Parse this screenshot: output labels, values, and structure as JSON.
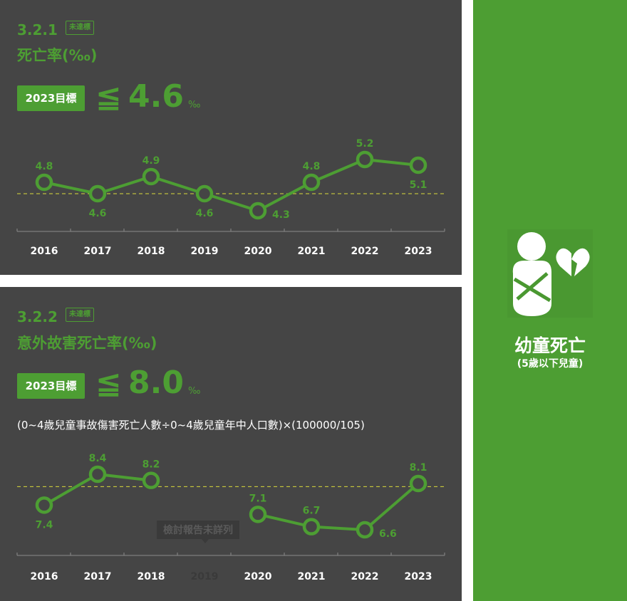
{
  "colors": {
    "accent": "#4d9e33",
    "panel": "#454545",
    "threshold_line": "#d9d93a",
    "point_fill": "#454545"
  },
  "charts": [
    {
      "code": "3.2.1",
      "status_badge": "未達標",
      "metric_title": "死亡率(‰)",
      "target_label": "2023目標",
      "target_operator": "≦",
      "target_value": "4.6",
      "target_unit": "‰",
      "chart_data": {
        "type": "line",
        "categories": [
          "2016",
          "2017",
          "2018",
          "2019",
          "2020",
          "2021",
          "2022",
          "2023"
        ],
        "values": [
          4.8,
          4.6,
          4.9,
          4.6,
          4.3,
          4.8,
          5.2,
          5.1
        ],
        "value_labels": [
          "4.8",
          "4.6",
          "4.9",
          "4.6",
          "4.3",
          "4.8",
          "5.2",
          "5.1"
        ],
        "threshold": 4.6,
        "ylim": [
          4.0,
          5.5
        ]
      }
    },
    {
      "code": "3.2.2",
      "status_badge": "未達標",
      "metric_title": "意外故害死亡率(‰)",
      "target_label": "2023目標",
      "target_operator": "≦",
      "target_value": "8.0",
      "target_unit": "‰",
      "formula": "(0~4歲兒童事故傷害死亡人數÷0~4歲兒童年中人口數)×(100000/105)",
      "note": "檢討報告未詳列",
      "chart_data": {
        "type": "line",
        "categories": [
          "2016",
          "2017",
          "2018",
          "2019",
          "2020",
          "2021",
          "2022",
          "2023"
        ],
        "values": [
          7.4,
          8.4,
          8.2,
          null,
          7.1,
          6.7,
          6.6,
          8.1
        ],
        "value_labels": [
          "7.4",
          "8.4",
          "8.2",
          "",
          "7.1",
          "6.7",
          "6.6",
          "8.1"
        ],
        "threshold": 8.0,
        "ylim": [
          6.0,
          9.0
        ]
      }
    }
  ],
  "sidebar": {
    "icon": "infant-broken-heart-icon",
    "title": "幼童死亡",
    "subtitle": "(5歲以下兒童)"
  }
}
